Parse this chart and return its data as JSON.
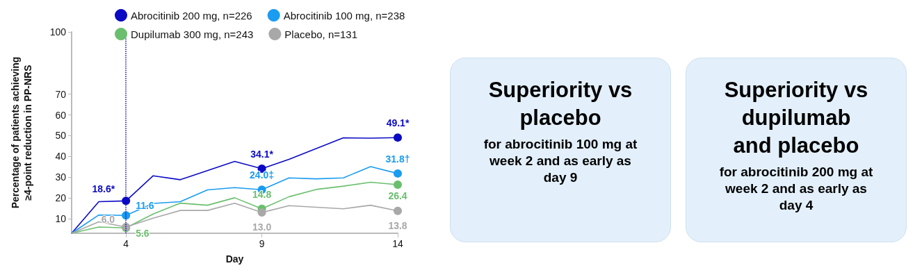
{
  "chart_data": {
    "type": "line",
    "xlabel": "Day",
    "ylabel": "Percentage of patients achieving ≥4-point reduction in PP-NRS",
    "xlim": [
      2,
      14
    ],
    "xticks": [
      4,
      9,
      14
    ],
    "ylim": [
      3,
      100
    ],
    "yticks": [
      10,
      20,
      30,
      40,
      50,
      60,
      70,
      100
    ],
    "grid": false,
    "legend": "top",
    "line_style": "solid",
    "series": [
      {
        "name": "Abrocitinib 200 mg, n=226",
        "color": "#0a0ac4",
        "x": [
          2,
          3,
          4,
          5,
          6,
          8,
          9,
          10,
          12,
          13,
          14
        ],
        "values": [
          3,
          18.2,
          18.6,
          30.7,
          28.8,
          37.6,
          34.1,
          38.6,
          49.0,
          48.8,
          49.1
        ],
        "value_labels": [
          null,
          null,
          "18.6*",
          null,
          null,
          null,
          "34.1*",
          null,
          null,
          null,
          "49.1*"
        ]
      },
      {
        "name": "Abrocitinib 100 mg, n=238",
        "color": "#1a9cf0",
        "x": [
          2,
          3,
          4,
          5,
          6,
          7,
          8,
          9,
          10,
          11,
          12,
          13,
          14
        ],
        "values": [
          3,
          11.8,
          11.6,
          17.4,
          18.2,
          23.9,
          25.0,
          24.0,
          29.7,
          29.2,
          29.7,
          35.1,
          31.8
        ],
        "value_labels": [
          null,
          null,
          "11.6",
          null,
          null,
          null,
          null,
          "24.0‡",
          null,
          null,
          null,
          null,
          "31.8†"
        ]
      },
      {
        "name": "Dupilumab 300 mg, n=243",
        "color": "#6abf6e",
        "x": [
          2,
          3,
          4,
          5,
          6,
          7,
          8,
          9,
          10,
          11,
          12,
          13,
          14
        ],
        "values": [
          3,
          6.0,
          5.6,
          12.3,
          17.5,
          16.5,
          20.1,
          14.8,
          20.6,
          24.1,
          25.7,
          27.6,
          26.4
        ],
        "value_labels": [
          null,
          null,
          "5.6",
          null,
          null,
          null,
          null,
          "14.8",
          null,
          null,
          null,
          null,
          "26.4"
        ]
      },
      {
        "name": "Placebo, n=131",
        "color": "#a8a8a8",
        "x": [
          2,
          3,
          4,
          5,
          6,
          7,
          8,
          9,
          10,
          12,
          13,
          14
        ],
        "values": [
          3,
          8.5,
          6.0,
          10.3,
          14.0,
          14.0,
          17.5,
          13.0,
          16.3,
          14.8,
          16.5,
          13.8
        ],
        "value_labels": [
          null,
          null,
          "6.0",
          null,
          null,
          null,
          null,
          "13.0",
          null,
          null,
          null,
          "13.8"
        ]
      }
    ],
    "ref_lines": [
      {
        "axis": "x",
        "value": 4,
        "color": "#0a0ac4",
        "line_style": "dotted"
      }
    ],
    "annotations": [
      "Superiority vs placebo",
      "for abrocitinib 100 mg at week 2 and as early as day 9",
      "Superiority vs dupilumab and placebo",
      "for abrocitinib 200 mg at week 2 and as early as day 4"
    ]
  }
}
